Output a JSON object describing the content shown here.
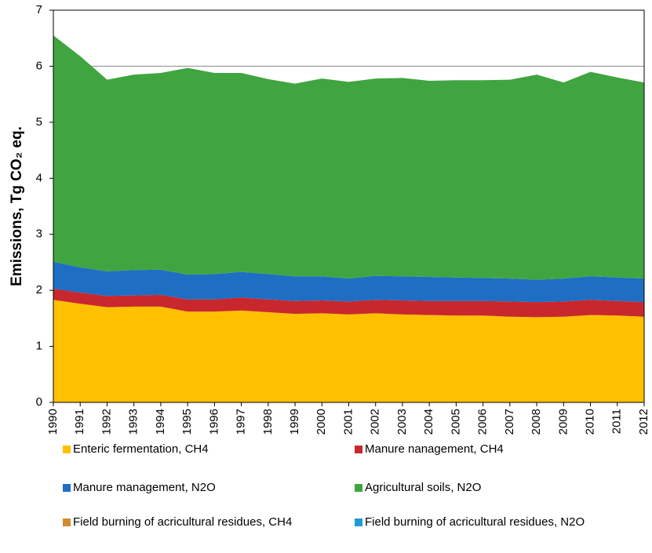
{
  "chart_data": {
    "type": "stacked_area",
    "y_label": "Emissions, Tg CO₂ eq.",
    "categories": [
      "1990",
      "1991",
      "1992",
      "1993",
      "1994",
      "1995",
      "1996",
      "1997",
      "1998",
      "1999",
      "2000",
      "2001",
      "2002",
      "2003",
      "2004",
      "2005",
      "2006",
      "2007",
      "2008",
      "2009",
      "2010",
      "2011",
      "2012"
    ],
    "series": [
      {
        "name": "Enteric fermentation, CH4",
        "color": "#FFC000",
        "values": [
          1.83,
          1.76,
          1.7,
          1.71,
          1.71,
          1.62,
          1.62,
          1.64,
          1.61,
          1.58,
          1.59,
          1.57,
          1.59,
          1.57,
          1.56,
          1.55,
          1.55,
          1.53,
          1.52,
          1.53,
          1.56,
          1.55,
          1.53
        ]
      },
      {
        "name": "Manure nanagement, CH4",
        "color": "#C8282D",
        "values": [
          0.2,
          0.2,
          0.2,
          0.2,
          0.21,
          0.22,
          0.22,
          0.23,
          0.23,
          0.23,
          0.23,
          0.23,
          0.24,
          0.25,
          0.25,
          0.26,
          0.26,
          0.27,
          0.27,
          0.27,
          0.27,
          0.26,
          0.26
        ]
      },
      {
        "name": "Manure management, N2O",
        "color": "#1E6EC4",
        "values": [
          0.48,
          0.45,
          0.44,
          0.45,
          0.45,
          0.44,
          0.45,
          0.46,
          0.45,
          0.44,
          0.43,
          0.41,
          0.43,
          0.43,
          0.43,
          0.42,
          0.41,
          0.41,
          0.4,
          0.41,
          0.42,
          0.42,
          0.42
        ]
      },
      {
        "name": "Agricultural soils, N2O",
        "color": "#40A540",
        "values": [
          4.04,
          3.77,
          3.42,
          3.49,
          3.51,
          3.69,
          3.59,
          3.55,
          3.48,
          3.44,
          3.53,
          3.51,
          3.52,
          3.54,
          3.5,
          3.52,
          3.53,
          3.55,
          3.66,
          3.5,
          3.65,
          3.57,
          3.5
        ]
      },
      {
        "name": "Field burning of acricultural residues, CH4",
        "color": "#D08A30",
        "values": [
          0,
          0,
          0,
          0,
          0,
          0,
          0,
          0,
          0,
          0,
          0,
          0,
          0,
          0,
          0,
          0,
          0,
          0,
          0,
          0,
          0,
          0,
          0
        ]
      },
      {
        "name": "Field burning of acricultural residues, N2O",
        "color": "#1E9BD7",
        "values": [
          0,
          0,
          0,
          0,
          0,
          0,
          0,
          0,
          0,
          0,
          0,
          0,
          0,
          0,
          0,
          0,
          0,
          0,
          0,
          0,
          0,
          0,
          0
        ]
      }
    ],
    "ylim": [
      0,
      7
    ],
    "yticks": [
      0,
      1,
      2,
      3,
      4,
      5,
      6,
      7
    ],
    "grid": true
  }
}
